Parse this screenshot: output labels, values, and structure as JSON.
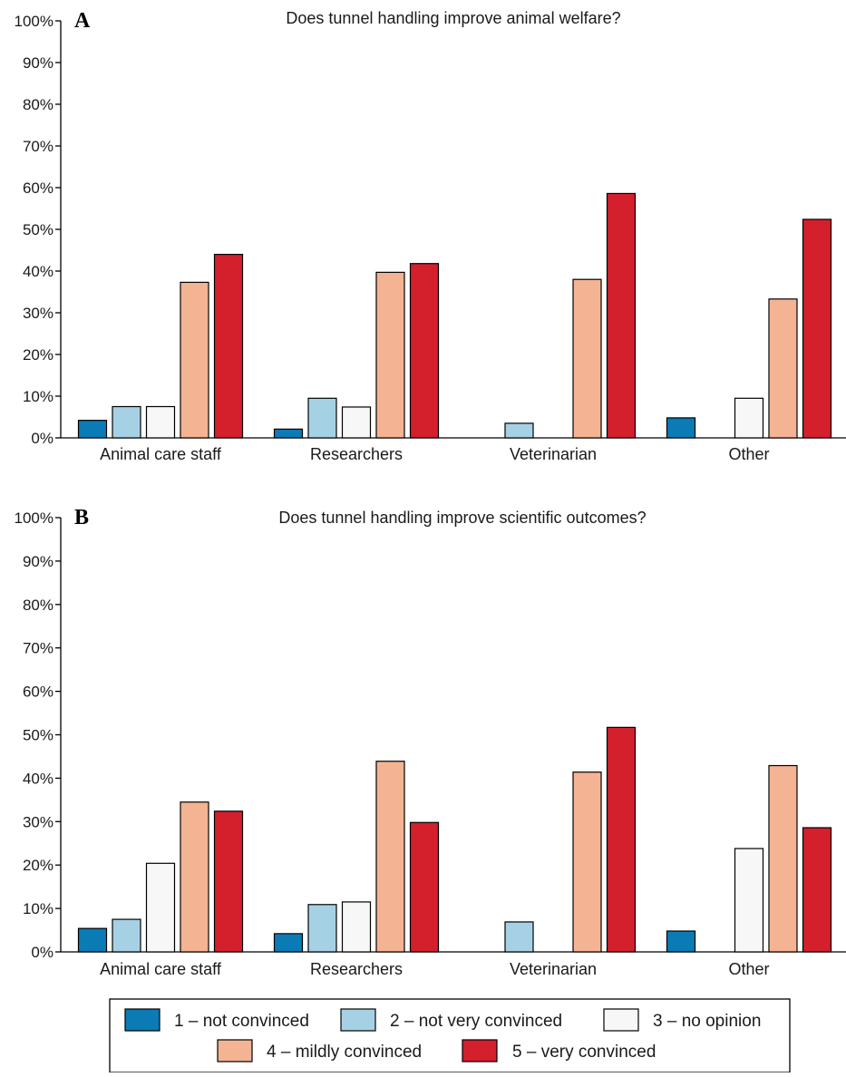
{
  "colors": {
    "1 – not convinced": "#0b7bb5",
    "2 – not very convinced": "#a6d1e5",
    "3 – no opinion": "#f7f7f7",
    "4 – mildly convinced": "#f4b393",
    "5 – very convinced": "#d41f2d"
  },
  "legend": {
    "items": [
      "1 – not convinced",
      "2 – not very convinced",
      "3 – no opinion",
      "4 – mildly convinced",
      "5 – very convinced"
    ]
  },
  "chart_data": [
    {
      "type": "bar",
      "panel": "A",
      "title": "Does tunnel handling improve animal welfare?",
      "xlabel": "",
      "ylabel": "",
      "ylim": [
        0,
        100
      ],
      "yticks": [
        "0%",
        "10%",
        "20%",
        "30%",
        "40%",
        "50%",
        "60%",
        "70%",
        "80%",
        "90%",
        "100%"
      ],
      "categories": [
        "Animal care staff",
        "Researchers",
        "Veterinarian",
        "Other"
      ],
      "series": [
        {
          "name": "1 – not convinced",
          "values": [
            4.2,
            2.1,
            0,
            4.8
          ]
        },
        {
          "name": "2 – not very convinced",
          "values": [
            7.5,
            9.5,
            3.5,
            0
          ]
        },
        {
          "name": "3 – no opinion",
          "values": [
            7.5,
            7.4,
            0,
            9.5
          ]
        },
        {
          "name": "4 – mildly convinced",
          "values": [
            37.3,
            39.7,
            38.0,
            33.3
          ]
        },
        {
          "name": "5 – very convinced",
          "values": [
            44.0,
            41.8,
            58.6,
            52.4
          ]
        }
      ]
    },
    {
      "type": "bar",
      "panel": "B",
      "title": "Does tunnel handling improve scientific outcomes?",
      "xlabel": "",
      "ylabel": "",
      "ylim": [
        0,
        100
      ],
      "yticks": [
        "0%",
        "10%",
        "20%",
        "30%",
        "40%",
        "50%",
        "60%",
        "70%",
        "80%",
        "90%",
        "100%"
      ],
      "categories": [
        "Animal care staff",
        "Researchers",
        "Veterinarian",
        "Other"
      ],
      "series": [
        {
          "name": "1 – not convinced",
          "values": [
            5.4,
            4.2,
            0,
            4.8
          ]
        },
        {
          "name": "2 – not very convinced",
          "values": [
            7.5,
            10.9,
            6.9,
            0
          ]
        },
        {
          "name": "3 – no opinion",
          "values": [
            20.4,
            11.5,
            0,
            23.8
          ]
        },
        {
          "name": "4 – mildly convinced",
          "values": [
            34.5,
            43.9,
            41.4,
            42.9
          ]
        },
        {
          "name": "5 – very convinced",
          "values": [
            32.4,
            29.8,
            51.7,
            28.6
          ]
        }
      ]
    }
  ]
}
